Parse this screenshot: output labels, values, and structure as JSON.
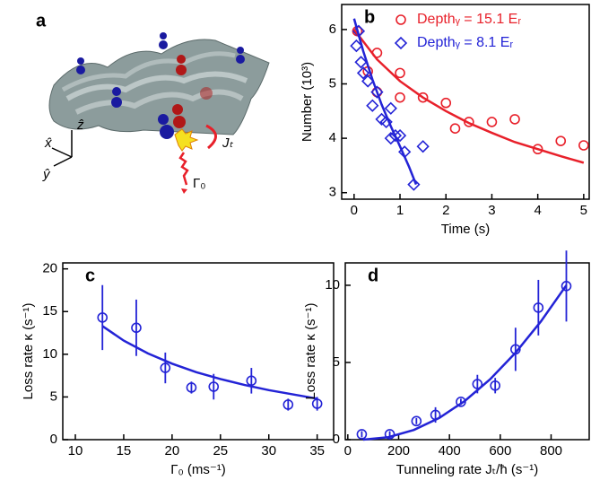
{
  "illustration": {
    "label": "a",
    "axes": [
      "x̂",
      "ŷ",
      "ẑ"
    ],
    "tunneling": "Jₜ",
    "loss": "Γ₀"
  },
  "chart_data": [
    {
      "type": "scatter",
      "label": "b",
      "xlabel": "Time (s)",
      "ylabel": "Number  (10³)",
      "xlim": [
        -0.27,
        5.12
      ],
      "ylim": [
        2.88,
        6.46
      ],
      "xticks": [
        0,
        1,
        2,
        3,
        4,
        5
      ],
      "yticks": [
        3,
        4,
        5,
        6
      ],
      "legend": "upper right",
      "series": [
        {
          "name": "Depthᵧ = 15.1 Eᵣ",
          "color": "#e8202a",
          "marker": "circle",
          "x": [
            0.07,
            0.3,
            0.5,
            0.5,
            1.0,
            1.0,
            1.5,
            2.0,
            2.2,
            2.5,
            3.0,
            3.5,
            4.0,
            4.5,
            5.0
          ],
          "values": [
            5.97,
            5.23,
            5.57,
            4.85,
            4.75,
            5.2,
            4.75,
            4.65,
            4.18,
            4.3,
            4.3,
            4.35,
            3.8,
            3.95,
            3.87
          ]
        },
        {
          "name": "Depthᵧ = 8.1 Eᵣ",
          "color": "#2323d6",
          "marker": "diamond",
          "x": [
            0.05,
            0.1,
            0.15,
            0.2,
            0.3,
            0.4,
            0.5,
            0.6,
            0.7,
            0.8,
            0.8,
            0.9,
            1.0,
            1.1,
            1.3,
            1.5
          ],
          "values": [
            5.7,
            5.97,
            5.4,
            5.2,
            5.05,
            4.6,
            4.85,
            4.35,
            4.3,
            4.55,
            4.0,
            4.05,
            4.05,
            3.75,
            3.15,
            3.85
          ]
        },
        {
          "color": "#e8202a",
          "marker": "line",
          "x": [
            0,
            0.5,
            1,
            1.5,
            2,
            2.5,
            3,
            3.5,
            4,
            4.5,
            5
          ],
          "values": [
            6.0,
            5.45,
            5.05,
            4.75,
            4.5,
            4.28,
            4.1,
            3.93,
            3.8,
            3.67,
            3.55
          ]
        },
        {
          "color": "#2323d6",
          "marker": "line",
          "x": [
            0,
            0.2,
            0.4,
            0.6,
            0.8,
            1.0,
            1.2,
            1.35
          ],
          "values": [
            6.2,
            5.6,
            5.08,
            4.62,
            4.22,
            3.85,
            3.47,
            3.15
          ]
        }
      ]
    },
    {
      "type": "scatter",
      "label": "c",
      "xlabel": "Γ₀ (ms⁻¹)",
      "ylabel": "Loss rate κ (s⁻¹)",
      "xlim": [
        8.7,
        36.7
      ],
      "ylim": [
        0,
        20.7
      ],
      "xticks": [
        10,
        15,
        20,
        25,
        30,
        35
      ],
      "yticks": [
        0,
        5,
        10,
        15,
        20
      ],
      "series": [
        {
          "color": "#2323d6",
          "marker": "circle",
          "x": [
            12.8,
            16.3,
            19.3,
            22,
            24.3,
            28.2,
            32,
            35
          ],
          "values": [
            14.3,
            13.1,
            8.4,
            6.1,
            6.2,
            6.9,
            4.1,
            4.2
          ],
          "errors": [
            3.8,
            3.3,
            1.8,
            0.7,
            1.5,
            1.5,
            0.7,
            0.8
          ]
        },
        {
          "color": "#2323d6",
          "marker": "line",
          "x": [
            12.8,
            15,
            17.5,
            20,
            22.5,
            25,
            27.5,
            30,
            32.5,
            35
          ],
          "values": [
            13.3,
            11.6,
            10.1,
            8.9,
            7.9,
            7.1,
            6.4,
            5.8,
            5.3,
            4.8
          ]
        }
      ]
    },
    {
      "type": "scatter",
      "label": "d",
      "xlabel": "Tunneling rate Jₜ/ħ (s⁻¹)",
      "ylabel": "Loss rate κ (s⁻¹)",
      "xlim": [
        -10,
        950
      ],
      "ylim": [
        0,
        11.45
      ],
      "xticks": [
        0,
        200,
        400,
        600,
        800
      ],
      "yticks": [
        0,
        5,
        10
      ],
      "series": [
        {
          "color": "#2323d6",
          "marker": "circle",
          "x": [
            55,
            165,
            270,
            345,
            445,
            510,
            580,
            660,
            750,
            860
          ],
          "values": [
            0.35,
            0.35,
            1.2,
            1.6,
            2.45,
            3.6,
            3.5,
            5.85,
            8.55,
            9.95
          ],
          "errors": [
            0.2,
            0.2,
            0.2,
            0.5,
            0.2,
            0.6,
            0.5,
            1.4,
            1.8,
            2.3
          ]
        },
        {
          "color": "#2323d6",
          "marker": "line",
          "x": [
            60,
            160,
            260,
            360,
            460,
            560,
            660,
            760,
            860
          ],
          "values": [
            0,
            0.16,
            0.63,
            1.41,
            2.5,
            3.91,
            5.63,
            7.66,
            10
          ]
        }
      ]
    }
  ]
}
